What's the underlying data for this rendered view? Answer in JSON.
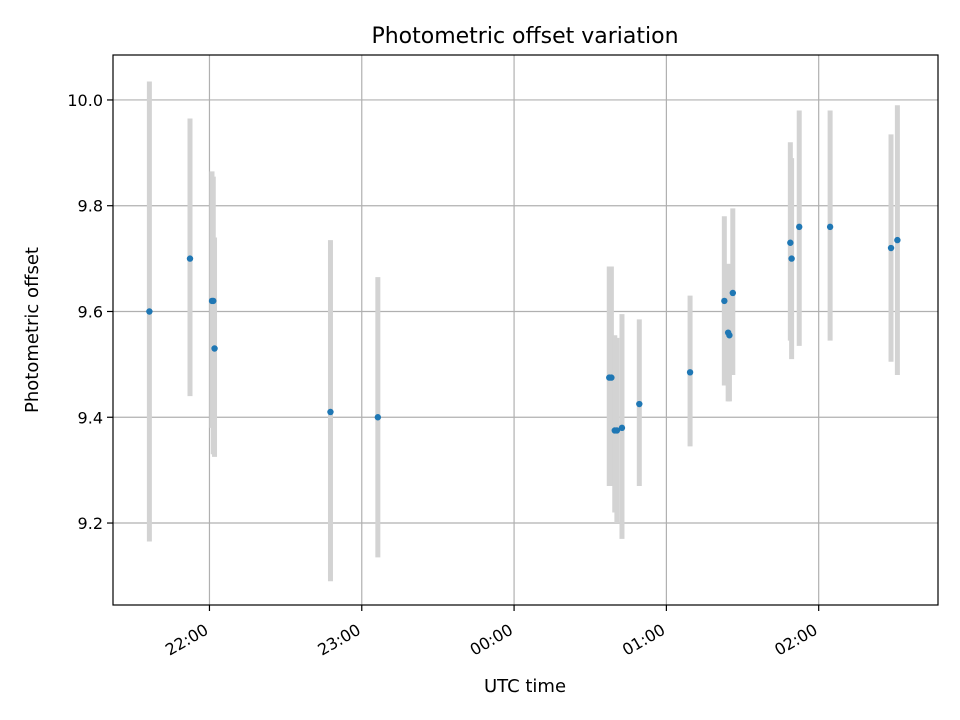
{
  "chart_data": {
    "type": "scatter",
    "title": "Photometric offset variation",
    "xlabel": "UTC time",
    "ylabel": "Photometric offset",
    "xlim": [
      "21:22",
      "02:47"
    ],
    "ylim": [
      9.045,
      10.085
    ],
    "x_ticks": [
      "22:00",
      "23:00",
      "00:00",
      "01:00",
      "02:00"
    ],
    "y_ticks": [
      9.2,
      9.4,
      9.6,
      9.8,
      10.0
    ],
    "y_tick_labels": [
      "9.2",
      "9.4",
      "9.6",
      "9.8",
      "10.0"
    ],
    "grid": true,
    "series": [
      {
        "marker": "point",
        "points": [
          {
            "x": "21:36:20",
            "y": 9.6,
            "ylow": 9.165,
            "yhigh": 10.035
          },
          {
            "x": "21:52:20",
            "y": 9.7,
            "ylow": 9.44,
            "yhigh": 9.965
          },
          {
            "x": "22:01:00",
            "y": 9.62,
            "ylow": 9.38,
            "yhigh": 9.865
          },
          {
            "x": "22:01:30",
            "y": 9.62,
            "ylow": 9.33,
            "yhigh": 9.855
          },
          {
            "x": "22:02:00",
            "y": 9.53,
            "ylow": 9.325,
            "yhigh": 9.74
          },
          {
            "x": "22:47:40",
            "y": 9.41,
            "ylow": 9.09,
            "yhigh": 9.735
          },
          {
            "x": "23:06:20",
            "y": 9.4,
            "ylow": 9.135,
            "yhigh": 9.665
          },
          {
            "x": "00:37:30",
            "y": 9.475,
            "ylow": 9.27,
            "yhigh": 9.685
          },
          {
            "x": "00:38:20",
            "y": 9.475,
            "ylow": 9.27,
            "yhigh": 9.685
          },
          {
            "x": "00:39:40",
            "y": 9.375,
            "ylow": 9.22,
            "yhigh": 9.555
          },
          {
            "x": "00:40:30",
            "y": 9.375,
            "ylow": 9.2,
            "yhigh": 9.55
          },
          {
            "x": "00:42:30",
            "y": 9.38,
            "ylow": 9.17,
            "yhigh": 9.595
          },
          {
            "x": "00:49:20",
            "y": 9.425,
            "ylow": 9.27,
            "yhigh": 9.585
          },
          {
            "x": "01:09:20",
            "y": 9.485,
            "ylow": 9.345,
            "yhigh": 9.63
          },
          {
            "x": "01:22:50",
            "y": 9.62,
            "ylow": 9.46,
            "yhigh": 9.78
          },
          {
            "x": "01:24:20",
            "y": 9.56,
            "ylow": 9.43,
            "yhigh": 9.69
          },
          {
            "x": "01:24:50",
            "y": 9.555,
            "ylow": 9.43,
            "yhigh": 9.69
          },
          {
            "x": "01:26:10",
            "y": 9.635,
            "ylow": 9.48,
            "yhigh": 9.795
          },
          {
            "x": "01:48:50",
            "y": 9.73,
            "ylow": 9.545,
            "yhigh": 9.92
          },
          {
            "x": "01:49:20",
            "y": 9.7,
            "ylow": 9.51,
            "yhigh": 9.89
          },
          {
            "x": "01:52:20",
            "y": 9.76,
            "ylow": 9.535,
            "yhigh": 9.98
          },
          {
            "x": "02:04:30",
            "y": 9.76,
            "ylow": 9.545,
            "yhigh": 9.98
          },
          {
            "x": "02:28:30",
            "y": 9.72,
            "ylow": 9.505,
            "yhigh": 9.935
          },
          {
            "x": "02:31:00",
            "y": 9.735,
            "ylow": 9.48,
            "yhigh": 9.99
          }
        ]
      }
    ],
    "colors": {
      "marker": "#1f77b4",
      "errorbar": "#d3d3d3",
      "grid": "#b0b0b0",
      "axes": "#000000"
    }
  }
}
